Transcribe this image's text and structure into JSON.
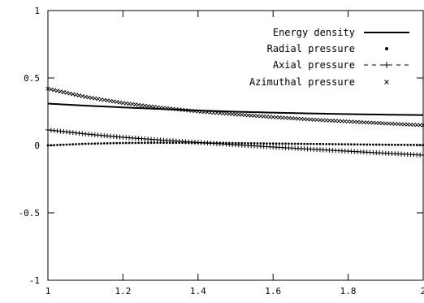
{
  "chart_data": {
    "type": "line",
    "title": "",
    "xlabel": "",
    "ylabel": "",
    "xlim": [
      1,
      2
    ],
    "ylim": [
      -1,
      1
    ],
    "grid": false,
    "legend_position": "top-right",
    "x_ticks": [
      1,
      1.2,
      1.4,
      1.6,
      1.8,
      2
    ],
    "x_tick_labels": [
      "1",
      "1.2",
      "1.4",
      "1.6",
      "1.8",
      "2"
    ],
    "y_ticks": [
      -1,
      -0.5,
      0,
      0.5,
      1
    ],
    "y_tick_labels": [
      "-1",
      "-0.5",
      "0",
      "0.5",
      "1"
    ],
    "series": [
      {
        "name": "Energy density",
        "style": "solid-line",
        "x": [
          1.0,
          1.1,
          1.2,
          1.3,
          1.4,
          1.5,
          1.6,
          1.7,
          1.8,
          1.9,
          2.0
        ],
        "y": [
          0.31,
          0.295,
          0.282,
          0.27,
          0.259,
          0.25,
          0.243,
          0.237,
          0.232,
          0.228,
          0.225
        ]
      },
      {
        "name": "Radial pressure",
        "style": "dots",
        "x": [
          1.0,
          1.1,
          1.2,
          1.3,
          1.4,
          1.5,
          1.6,
          1.7,
          1.8,
          1.9,
          2.0
        ],
        "y": [
          0.0,
          0.012,
          0.018,
          0.02,
          0.019,
          0.017,
          0.014,
          0.011,
          0.008,
          0.005,
          0.003
        ]
      },
      {
        "name": "Axial pressure",
        "style": "dashed-plus",
        "x": [
          1.0,
          1.1,
          1.2,
          1.3,
          1.4,
          1.5,
          1.6,
          1.7,
          1.8,
          1.9,
          2.0
        ],
        "y": [
          0.115,
          0.085,
          0.06,
          0.04,
          0.022,
          0.005,
          -0.012,
          -0.028,
          -0.043,
          -0.058,
          -0.072
        ]
      },
      {
        "name": "Azimuthal pressure",
        "style": "cross",
        "x": [
          1.0,
          1.1,
          1.2,
          1.3,
          1.4,
          1.5,
          1.6,
          1.7,
          1.8,
          1.9,
          2.0
        ],
        "y": [
          0.42,
          0.36,
          0.315,
          0.28,
          0.252,
          0.23,
          0.21,
          0.192,
          0.177,
          0.163,
          0.15
        ]
      }
    ],
    "colors": {
      "axis": "#000000",
      "series": "#000000"
    }
  }
}
